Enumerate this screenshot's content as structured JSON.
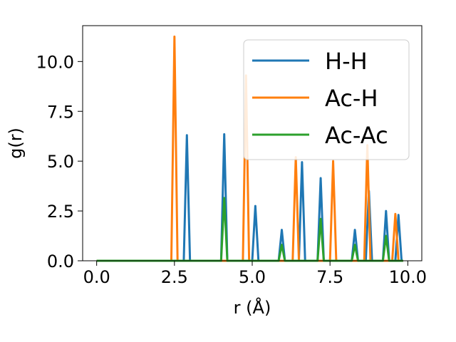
{
  "chart_data": {
    "type": "line",
    "xlabel": "r (Å)",
    "ylabel": "g(r)",
    "xlim": [
      -0.45,
      10.45
    ],
    "ylim": [
      0,
      11.8
    ],
    "x_ticks": [
      0.0,
      2.5,
      5.0,
      7.5,
      10.0
    ],
    "x_tick_labels": [
      "0.0",
      "2.5",
      "5.0",
      "7.5",
      "10.0"
    ],
    "y_ticks": [
      0.0,
      2.5,
      5.0,
      7.5,
      10.0
    ],
    "y_tick_labels": [
      "0.0",
      "2.5",
      "5.0",
      "7.5",
      "10.0"
    ],
    "grid": false,
    "legend_position": "top-right",
    "series": [
      {
        "name": "H-H",
        "color": "#1f77b4",
        "x": [
          0.0,
          2.8,
          2.9,
          3.0,
          4.0,
          4.1,
          4.2,
          5.0,
          5.1,
          5.2,
          5.85,
          5.95,
          6.05,
          6.5,
          6.6,
          6.7,
          7.1,
          7.2,
          7.3,
          8.2,
          8.3,
          8.4,
          8.65,
          8.75,
          8.85,
          9.2,
          9.3,
          9.4,
          9.6,
          9.7,
          9.8,
          9.85
        ],
        "y": [
          0.0,
          0.0,
          6.3,
          0.0,
          0.0,
          6.35,
          0.0,
          0.0,
          2.75,
          0.0,
          0.0,
          1.55,
          0.0,
          0.0,
          4.95,
          0.0,
          0.0,
          4.15,
          0.0,
          0.0,
          1.55,
          0.0,
          0.0,
          3.5,
          0.0,
          0.0,
          2.5,
          0.0,
          0.0,
          2.3,
          0.0,
          0.0
        ]
      },
      {
        "name": "Ac-H",
        "color": "#ff7f0e",
        "x": [
          0.0,
          2.4,
          2.5,
          2.6,
          4.7,
          4.8,
          4.9,
          6.3,
          6.4,
          6.5,
          7.5,
          7.6,
          7.7,
          8.6,
          8.7,
          8.8,
          9.5,
          9.6,
          9.7,
          9.85
        ],
        "y": [
          0.0,
          0.0,
          11.25,
          0.0,
          0.0,
          9.3,
          0.0,
          0.0,
          5.2,
          0.0,
          0.0,
          5.0,
          0.0,
          0.0,
          5.8,
          0.0,
          0.0,
          2.35,
          0.0,
          0.0
        ]
      },
      {
        "name": "Ac-Ac",
        "color": "#2ca02c",
        "x": [
          0.0,
          4.0,
          4.1,
          4.2,
          5.85,
          5.95,
          6.05,
          7.1,
          7.2,
          7.3,
          8.2,
          8.3,
          8.4,
          9.2,
          9.3,
          9.4,
          9.85
        ],
        "y": [
          0.0,
          0.0,
          3.15,
          0.0,
          0.0,
          0.8,
          0.0,
          0.0,
          2.1,
          0.0,
          0.0,
          0.8,
          0.0,
          0.0,
          1.25,
          0.0,
          0.0
        ]
      }
    ]
  }
}
